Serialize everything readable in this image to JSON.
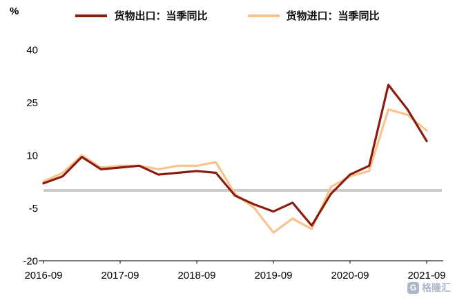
{
  "unit_label": "%",
  "watermark": {
    "logo_glyph": "G",
    "text": "格隆汇"
  },
  "colors": {
    "exports_line": "#8C1B0E",
    "imports_line": "#F7C48E",
    "zero_line": "#CBCBCB",
    "axis": "#262626",
    "watermark": "#9AA6BC"
  },
  "chart_data": {
    "type": "line",
    "title": "",
    "ylabel": "%",
    "xlabel": "",
    "legend_position": "top",
    "grid": false,
    "zero_line": true,
    "ylim": [
      -20,
      40
    ],
    "yticks": [
      "40",
      "25",
      "10",
      "-5",
      "-20"
    ],
    "ytick_values": [
      40,
      25,
      10,
      -5,
      -20
    ],
    "xticks": [
      "2016-09",
      "2017-09",
      "2018-09",
      "2019-09",
      "2020-09",
      "2021-09"
    ],
    "x": [
      "2016-09",
      "2016-12",
      "2017-03",
      "2017-06",
      "2017-09",
      "2017-12",
      "2018-03",
      "2018-06",
      "2018-09",
      "2018-12",
      "2019-03",
      "2019-06",
      "2019-09",
      "2019-12",
      "2020-03",
      "2020-06",
      "2020-09",
      "2020-12",
      "2021-03",
      "2021-06",
      "2021-09"
    ],
    "series": [
      {
        "name": "货物出口：当季同比",
        "color": "#8C1B0E",
        "values": [
          2,
          4,
          9.5,
          6,
          6.5,
          7,
          4.5,
          5,
          5.5,
          5,
          -1.5,
          -4,
          -6,
          -3.5,
          -10,
          -1,
          4.5,
          7,
          30,
          23,
          14
        ]
      },
      {
        "name": "货物进口：当季同比",
        "color": "#F7C48E",
        "values": [
          2.5,
          5,
          10,
          6.5,
          7,
          7,
          6,
          7,
          7,
          8,
          -1,
          -5,
          -12,
          -8,
          -11,
          1,
          4,
          5.5,
          23,
          21.5,
          17
        ]
      }
    ]
  }
}
